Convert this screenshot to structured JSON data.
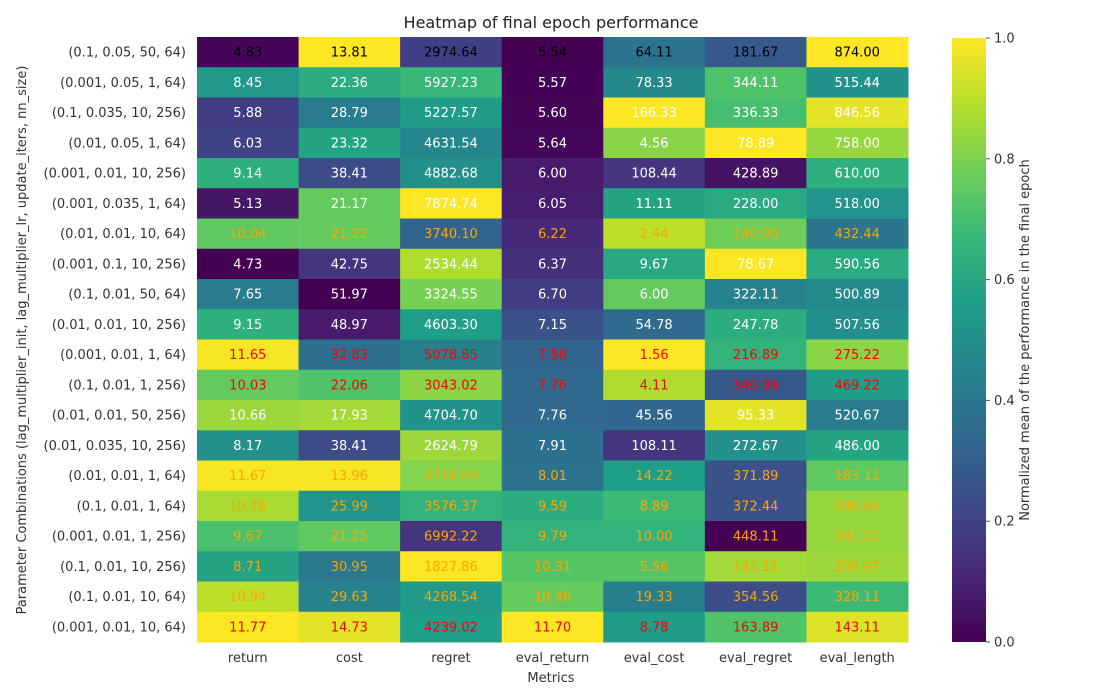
{
  "chart_data": {
    "type": "heatmap",
    "title": "Heatmap of final epoch performance",
    "xlabel": "Metrics",
    "ylabel": "Parameter Combinations (lag_multiplier_init, lag_multiplier_lr, update_iters, nn_size)",
    "colorbar_label": "Normalized mean of the performance in the final epoch",
    "colorbar_range": [
      0.0,
      1.0
    ],
    "colorbar_ticks": [
      "0.0",
      "0.2",
      "0.4",
      "0.6",
      "0.8",
      "1.0"
    ],
    "colormap": [
      "#440154",
      "#482878",
      "#3e4989",
      "#31688e",
      "#26828e",
      "#1f9e89",
      "#35b779",
      "#6ece58",
      "#b5de2b",
      "#fde725"
    ],
    "columns": [
      "return",
      "cost",
      "regret",
      "eval_return",
      "eval_cost",
      "eval_regret",
      "eval_length"
    ],
    "rows": [
      "(0.1, 0.05, 50, 64)",
      "(0.001, 0.05, 1, 64)",
      "(0.1, 0.035, 10, 256)",
      "(0.01, 0.05, 1, 64)",
      "(0.001, 0.01, 10, 256)",
      "(0.001, 0.035, 1, 64)",
      "(0.01, 0.01, 10, 64)",
      "(0.001, 0.1, 10, 256)",
      "(0.1, 0.01, 50, 64)",
      "(0.01, 0.01, 10, 256)",
      "(0.001, 0.01, 1, 64)",
      "(0.1, 0.01, 1, 256)",
      "(0.01, 0.01, 50, 256)",
      "(0.01, 0.035, 10, 256)",
      "(0.01, 0.01, 1, 64)",
      "(0.1, 0.01, 1, 64)",
      "(0.001, 0.01, 1, 256)",
      "(0.1, 0.01, 10, 256)",
      "(0.1, 0.01, 10, 64)",
      "(0.001, 0.01, 10, 64)"
    ],
    "values": [
      [
        "4.83",
        "13.81",
        "2974.64",
        "5.54",
        "64.11",
        "181.67",
        "874.00"
      ],
      [
        "8.45",
        "22.36",
        "5927.23",
        "5.57",
        "78.33",
        "344.11",
        "515.44"
      ],
      [
        "5.88",
        "28.79",
        "5227.57",
        "5.60",
        "166.33",
        "336.33",
        "846.56"
      ],
      [
        "6.03",
        "23.32",
        "4631.54",
        "5.64",
        "4.56",
        "78.89",
        "758.00"
      ],
      [
        "9.14",
        "38.41",
        "4882.68",
        "6.00",
        "108.44",
        "428.89",
        "610.00"
      ],
      [
        "5.13",
        "21.17",
        "7874.74",
        "6.05",
        "11.11",
        "228.00",
        "518.00"
      ],
      [
        "10.04",
        "21.22",
        "3740.10",
        "6.22",
        "2.44",
        "140.00",
        "432.44"
      ],
      [
        "4.73",
        "42.75",
        "2534.44",
        "6.37",
        "9.67",
        "78.67",
        "590.56"
      ],
      [
        "7.65",
        "51.97",
        "3324.55",
        "6.70",
        "6.00",
        "322.11",
        "500.89"
      ],
      [
        "9.15",
        "48.97",
        "4603.30",
        "7.15",
        "54.78",
        "247.78",
        "507.56"
      ],
      [
        "11.65",
        "32.83",
        "5078.85",
        "7.58",
        "1.56",
        "216.89",
        "275.22"
      ],
      [
        "10.03",
        "22.06",
        "3043.02",
        "7.76",
        "4.11",
        "340.89",
        "469.22"
      ],
      [
        "10.66",
        "17.93",
        "4704.70",
        "7.76",
        "45.56",
        "95.33",
        "520.67"
      ],
      [
        "8.17",
        "38.41",
        "2624.79",
        "7.91",
        "108.11",
        "272.67",
        "486.00"
      ],
      [
        "11.67",
        "13.96",
        "2718.09",
        "8.01",
        "14.22",
        "371.89",
        "183.11"
      ],
      [
        "10.78",
        "25.99",
        "3576.37",
        "9.59",
        "8.89",
        "372.44",
        "240.44"
      ],
      [
        "9.67",
        "21.25",
        "6992.22",
        "9.79",
        "10.00",
        "448.11",
        "241.22"
      ],
      [
        "8.71",
        "30.95",
        "1827.86",
        "10.31",
        "5.56",
        "141.11",
        "236.67"
      ],
      [
        "10.94",
        "29.63",
        "4268.54",
        "10.48",
        "19.33",
        "354.56",
        "328.11"
      ],
      [
        "11.77",
        "14.73",
        "4239.02",
        "11.70",
        "8.78",
        "163.89",
        "143.11"
      ]
    ],
    "normalized": [
      [
        0.015,
        1.0,
        0.19,
        0.0,
        0.38,
        0.28,
        1.0
      ],
      [
        0.53,
        0.62,
        0.67,
        0.005,
        0.47,
        0.72,
        0.51
      ],
      [
        0.18,
        0.42,
        0.55,
        0.01,
        1.0,
        0.7,
        0.96
      ],
      [
        0.2,
        0.58,
        0.46,
        0.017,
        0.82,
        1.0,
        0.84
      ],
      [
        0.63,
        0.23,
        0.5,
        0.07,
        0.15,
        0.05,
        0.63
      ],
      [
        0.06,
        0.76,
        1.0,
        0.08,
        0.58,
        0.61,
        0.52
      ],
      [
        0.75,
        0.76,
        0.32,
        0.11,
        0.9,
        0.78,
        0.39
      ],
      [
        0.0,
        0.15,
        0.88,
        0.13,
        0.6,
        1.0,
        0.61
      ],
      [
        0.42,
        0.0,
        0.79,
        0.18,
        0.76,
        0.45,
        0.48
      ],
      [
        0.63,
        0.07,
        0.56,
        0.25,
        0.34,
        0.62,
        0.5
      ],
      [
        0.99,
        0.36,
        0.43,
        0.32,
        1.0,
        0.65,
        0.82
      ],
      [
        0.76,
        0.72,
        0.82,
        0.34,
        0.88,
        0.28,
        0.55
      ],
      [
        0.85,
        0.86,
        0.51,
        0.34,
        0.33,
        0.96,
        0.42
      ],
      [
        0.5,
        0.23,
        0.85,
        0.37,
        0.15,
        0.5,
        0.58
      ],
      [
        0.99,
        0.99,
        0.81,
        0.38,
        0.56,
        0.25,
        0.75
      ],
      [
        0.87,
        0.52,
        0.65,
        0.62,
        0.68,
        0.25,
        0.84
      ],
      [
        0.71,
        0.75,
        0.15,
        0.65,
        0.65,
        0.0,
        0.84
      ],
      [
        0.58,
        0.4,
        1.0,
        0.73,
        0.73,
        0.86,
        0.85
      ],
      [
        0.9,
        0.45,
        0.54,
        0.76,
        0.43,
        0.24,
        0.68
      ],
      [
        1.0,
        0.96,
        0.56,
        1.0,
        0.55,
        0.72,
        0.95
      ]
    ],
    "text_colors": [
      [
        "#000000",
        "#000000",
        "#000000",
        "#000000",
        "#000000",
        "#000000",
        "#000000"
      ],
      [
        "#ffffff",
        "#ffffff",
        "#ffffff",
        "#ffffff",
        "#ffffff",
        "#ffffff",
        "#ffffff"
      ],
      [
        "#ffffff",
        "#ffffff",
        "#ffffff",
        "#ffffff",
        "#ffffff",
        "#ffffff",
        "#ffffff"
      ],
      [
        "#ffffff",
        "#ffffff",
        "#ffffff",
        "#ffffff",
        "#ffffff",
        "#ffffff",
        "#ffffff"
      ],
      [
        "#ffffff",
        "#ffffff",
        "#ffffff",
        "#ffffff",
        "#ffffff",
        "#ffffff",
        "#ffffff"
      ],
      [
        "#ffffff",
        "#ffffff",
        "#ffffff",
        "#ffffff",
        "#ffffff",
        "#ffffff",
        "#ffffff"
      ],
      [
        "#ffa500",
        "#ffa500",
        "#ffa500",
        "#ffa500",
        "#ffa500",
        "#ffa500",
        "#ffa500"
      ],
      [
        "#ffffff",
        "#ffffff",
        "#ffffff",
        "#ffffff",
        "#ffffff",
        "#ffffff",
        "#ffffff"
      ],
      [
        "#ffffff",
        "#ffffff",
        "#ffffff",
        "#ffffff",
        "#ffffff",
        "#ffffff",
        "#ffffff"
      ],
      [
        "#ffffff",
        "#ffffff",
        "#ffffff",
        "#ffffff",
        "#ffffff",
        "#ffffff",
        "#ffffff"
      ],
      [
        "#ff0000",
        "#ff0000",
        "#ff0000",
        "#ff0000",
        "#ff0000",
        "#ff0000",
        "#ff0000"
      ],
      [
        "#ff0000",
        "#ff0000",
        "#ff0000",
        "#ff0000",
        "#ff0000",
        "#ff0000",
        "#ff0000"
      ],
      [
        "#ffffff",
        "#ffffff",
        "#ffffff",
        "#ffffff",
        "#ffffff",
        "#ffffff",
        "#ffffff"
      ],
      [
        "#ffffff",
        "#ffffff",
        "#ffffff",
        "#ffffff",
        "#ffffff",
        "#ffffff",
        "#ffffff"
      ],
      [
        "#ffa500",
        "#ffa500",
        "#ffa500",
        "#ffa500",
        "#ffa500",
        "#ffa500",
        "#ffa500"
      ],
      [
        "#ffa500",
        "#ffa500",
        "#ffa500",
        "#ffa500",
        "#ffa500",
        "#ffa500",
        "#ffa500"
      ],
      [
        "#ffa500",
        "#ffa500",
        "#ffa500",
        "#ffa500",
        "#ffa500",
        "#ffa500",
        "#ffa500"
      ],
      [
        "#ffa500",
        "#ffa500",
        "#ffa500",
        "#ffa500",
        "#ffa500",
        "#ffa500",
        "#ffa500"
      ],
      [
        "#ffa500",
        "#ffa500",
        "#ffa500",
        "#ffa500",
        "#ffa500",
        "#ffa500",
        "#ffa500"
      ],
      [
        "#ff0000",
        "#ff0000",
        "#ff0000",
        "#ff0000",
        "#ff0000",
        "#ff0000",
        "#ff0000"
      ]
    ]
  }
}
